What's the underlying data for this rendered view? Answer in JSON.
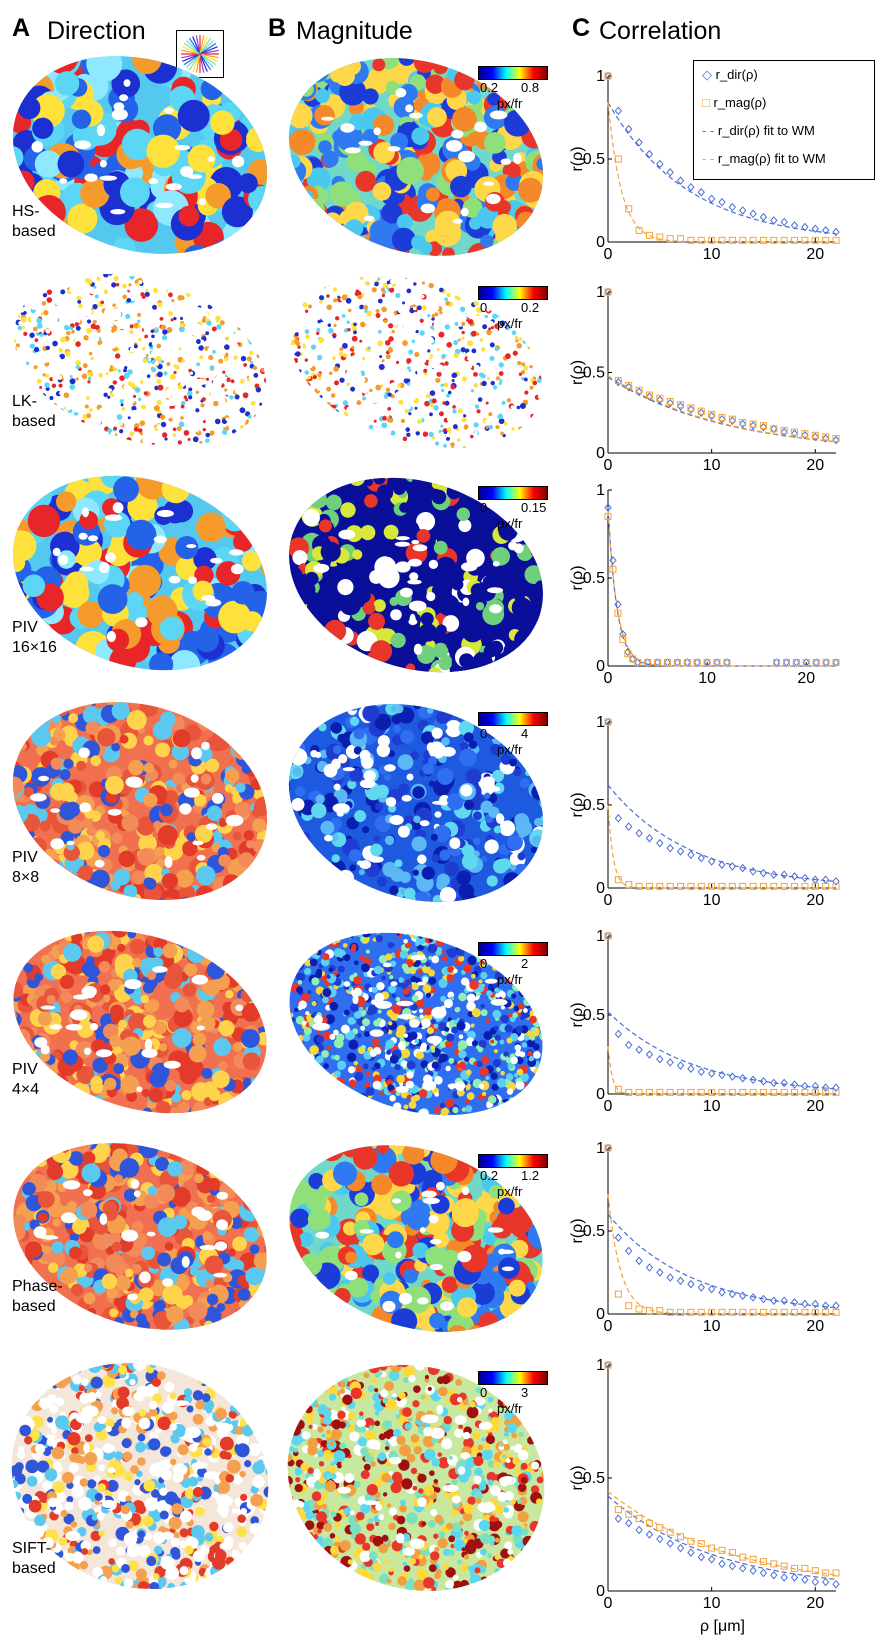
{
  "panels": {
    "a": {
      "letter": "A",
      "title": "Direction"
    },
    "b": {
      "letter": "B",
      "title": "Magnitude"
    },
    "c": {
      "letter": "C",
      "title": "Correlation"
    }
  },
  "colors": {
    "dir_series": "#4a6ed6",
    "mag_series": "#f2a43a",
    "jet": [
      "#00008f",
      "#0000ff",
      "#00ffff",
      "#ffff00",
      "#ff0000",
      "#800000"
    ]
  },
  "methods": [
    {
      "label_lines": [
        "HS-",
        "based"
      ],
      "cb_ticks": [
        "0.2",
        "0.8"
      ],
      "cb_unit": "px/fr",
      "dir_style": "jet-blobs",
      "mag_style": "jet-mid"
    },
    {
      "label_lines": [
        "LK-",
        "based"
      ],
      "cb_ticks": [
        "0",
        "0.2"
      ],
      "cb_unit": "px/fr",
      "dir_style": "sparse",
      "mag_style": "sparse"
    },
    {
      "label_lines": [
        "PIV",
        "16×16"
      ],
      "cb_ticks": [
        "0",
        "0.15"
      ],
      "cb_unit": "px/fr",
      "dir_style": "jet-blobs",
      "mag_style": "dark-blue"
    },
    {
      "label_lines": [
        "PIV",
        "8×8"
      ],
      "cb_ticks": [
        "0",
        "4"
      ],
      "cb_unit": "px/fr",
      "dir_style": "red-dominant",
      "mag_style": "blue"
    },
    {
      "label_lines": [
        "PIV",
        "4×4"
      ],
      "cb_ticks": [
        "0",
        "2"
      ],
      "cb_unit": "px/fr",
      "dir_style": "red-dominant",
      "mag_style": "blue-speckle"
    },
    {
      "label_lines": [
        "Phase-",
        "based"
      ],
      "cb_ticks": [
        "0.2",
        "1.2"
      ],
      "cb_unit": "px/fr",
      "dir_style": "red-dominant",
      "mag_style": "jet-mid"
    },
    {
      "label_lines": [
        "SIFT-",
        "based"
      ],
      "cb_ticks": [
        "0",
        "3"
      ],
      "cb_unit": "px/fr",
      "dir_style": "speckle-white",
      "mag_style": "warm-speckle"
    }
  ],
  "chart_data": [
    {
      "type": "scatter",
      "ylabel": "r(ρ)",
      "xlabel": "",
      "xlim": [
        0,
        22
      ],
      "ylim": [
        0,
        1
      ],
      "xticks": [
        0,
        10,
        20
      ],
      "yticks": [
        0,
        0.5,
        1
      ],
      "ytick_labels": [
        "0",
        "0.5",
        "1"
      ],
      "legend": {
        "placement": "top-right",
        "entries": [
          "r_dir(ρ)",
          "r_mag(ρ)",
          "r_dir(ρ) fit to WM",
          "r_mag(ρ) fit to WM"
        ]
      },
      "series": [
        {
          "series": "dir",
          "x": [
            0,
            1,
            2,
            3,
            4,
            5,
            6,
            7,
            8,
            9,
            10,
            11,
            12,
            13,
            14,
            15,
            16,
            17,
            18,
            19,
            20,
            21,
            22
          ],
          "y": [
            1,
            0.79,
            0.68,
            0.6,
            0.53,
            0.47,
            0.42,
            0.37,
            0.33,
            0.3,
            0.26,
            0.24,
            0.21,
            0.19,
            0.17,
            0.15,
            0.13,
            0.12,
            0.1,
            0.09,
            0.08,
            0.07,
            0.06
          ]
        },
        {
          "series": "mag",
          "x": [
            0,
            1,
            2,
            3,
            4,
            5,
            6,
            7,
            8,
            9,
            10,
            11,
            12,
            13,
            14,
            15,
            16,
            17,
            18,
            19,
            20,
            21,
            22
          ],
          "y": [
            1,
            0.5,
            0.2,
            0.07,
            0.04,
            0.03,
            0.02,
            0.02,
            0.01,
            0.01,
            0.01,
            0.01,
            0.01,
            0.01,
            0.01,
            0.01,
            0.01,
            0.01,
            0.01,
            0.01,
            0.01,
            0.01,
            0.01
          ]
        }
      ],
      "fits": [
        {
          "series": "dir",
          "a": 0.84,
          "tau": 7.8
        },
        {
          "series": "mag",
          "a": 0.84,
          "tau": 1.3
        }
      ]
    },
    {
      "type": "scatter",
      "ylabel": "r(ρ)",
      "xlabel": "",
      "xlim": [
        0,
        22
      ],
      "ylim": [
        0,
        1
      ],
      "xticks": [
        0,
        10,
        20
      ],
      "yticks": [
        0,
        0.5,
        1
      ],
      "ytick_labels": [
        "0",
        "0.5",
        "1"
      ],
      "series": [
        {
          "series": "dir",
          "x": [
            0,
            1,
            2,
            3,
            4,
            5,
            6,
            7,
            8,
            9,
            10,
            11,
            12,
            13,
            14,
            15,
            16,
            17,
            18,
            19,
            20,
            21,
            22
          ],
          "y": [
            1,
            0.44,
            0.41,
            0.38,
            0.35,
            0.33,
            0.31,
            0.29,
            0.27,
            0.25,
            0.23,
            0.21,
            0.2,
            0.18,
            0.17,
            0.16,
            0.15,
            0.13,
            0.12,
            0.11,
            0.1,
            0.09,
            0.08
          ]
        },
        {
          "series": "mag",
          "x": [
            0,
            1,
            2,
            3,
            4,
            5,
            6,
            7,
            8,
            9,
            10,
            11,
            12,
            13,
            14,
            15,
            16,
            17,
            18,
            19,
            20,
            21,
            22
          ],
          "y": [
            1,
            0.45,
            0.42,
            0.39,
            0.36,
            0.34,
            0.32,
            0.3,
            0.28,
            0.26,
            0.24,
            0.22,
            0.21,
            0.19,
            0.18,
            0.17,
            0.15,
            0.14,
            0.13,
            0.12,
            0.11,
            0.1,
            0.09
          ]
        }
      ],
      "fits": [
        {
          "series": "dir",
          "a": 0.47,
          "tau": 11.5
        },
        {
          "series": "mag",
          "a": 0.48,
          "tau": 11.5
        }
      ]
    },
    {
      "type": "scatter",
      "ylabel": "r(ρ)",
      "xlabel": "",
      "xlim": [
        0,
        23
      ],
      "ylim": [
        0,
        1
      ],
      "xticks": [
        0,
        10,
        20
      ],
      "yticks": [
        0,
        0.5,
        1
      ],
      "ytick_labels": [
        "0",
        "0.5",
        "1"
      ],
      "series": [
        {
          "series": "dir",
          "x": [
            0,
            0.5,
            1,
            1.5,
            2,
            2.5,
            3,
            4,
            5,
            6,
            7,
            8,
            9,
            10,
            11,
            12,
            17,
            18,
            19,
            20,
            21,
            22,
            23
          ],
          "y": [
            0.9,
            0.6,
            0.35,
            0.18,
            0.08,
            0.04,
            0.02,
            0.02,
            0.02,
            0.02,
            0.02,
            0.02,
            0.02,
            0.02,
            0.02,
            0.02,
            0.02,
            0.02,
            0.02,
            0.02,
            0.02,
            0.02,
            0.02
          ]
        },
        {
          "series": "mag",
          "x": [
            0,
            0.5,
            1,
            1.5,
            2,
            2.5,
            3,
            4,
            5,
            6,
            7,
            8,
            9,
            10,
            11,
            12,
            17,
            18,
            19,
            20,
            21,
            22,
            23
          ],
          "y": [
            0.85,
            0.55,
            0.3,
            0.15,
            0.07,
            0.04,
            0.02,
            0.02,
            0.02,
            0.02,
            0.02,
            0.02,
            0.02,
            0.02,
            0.02,
            0.02,
            0.02,
            0.02,
            0.02,
            0.02,
            0.02,
            0.02,
            0.02
          ]
        }
      ],
      "fits": [
        {
          "series": "dir",
          "a": 0.9,
          "tau": 0.9
        },
        {
          "series": "mag",
          "a": 0.88,
          "tau": 0.95
        }
      ]
    },
    {
      "type": "scatter",
      "ylabel": "r(ρ)",
      "xlabel": "",
      "xlim": [
        0,
        22
      ],
      "ylim": [
        0,
        1
      ],
      "xticks": [
        0,
        10,
        20
      ],
      "yticks": [
        0,
        0.5,
        1
      ],
      "ytick_labels": [
        "0",
        "0.5",
        "1"
      ],
      "series": [
        {
          "series": "dir",
          "x": [
            0,
            1,
            2,
            3,
            4,
            5,
            6,
            7,
            8,
            9,
            10,
            11,
            12,
            13,
            14,
            15,
            16,
            17,
            18,
            19,
            20,
            21,
            22
          ],
          "y": [
            1,
            0.42,
            0.37,
            0.33,
            0.3,
            0.27,
            0.24,
            0.22,
            0.2,
            0.18,
            0.16,
            0.14,
            0.13,
            0.12,
            0.1,
            0.09,
            0.08,
            0.08,
            0.07,
            0.06,
            0.05,
            0.05,
            0.04
          ]
        },
        {
          "series": "mag",
          "x": [
            0,
            1,
            2,
            3,
            4,
            5,
            6,
            7,
            8,
            9,
            10,
            11,
            12,
            13,
            14,
            15,
            16,
            17,
            18,
            19,
            20,
            21,
            22
          ],
          "y": [
            1,
            0.05,
            0.02,
            0.01,
            0.01,
            0.01,
            0.01,
            0.01,
            0.01,
            0.01,
            0.01,
            0.01,
            0.01,
            0.01,
            0.01,
            0.01,
            0.01,
            0.01,
            0.01,
            0.01,
            0.01,
            0.01,
            0.01
          ]
        }
      ],
      "fits": [
        {
          "series": "dir",
          "a": 0.62,
          "tau": 8
        },
        {
          "series": "mag",
          "a": 0.5,
          "tau": 0.5
        }
      ]
    },
    {
      "type": "scatter",
      "ylabel": "r(ρ)",
      "xlabel": "",
      "xlim": [
        0,
        22
      ],
      "ylim": [
        0,
        1
      ],
      "xticks": [
        0,
        10,
        20
      ],
      "yticks": [
        0,
        0.5,
        1
      ],
      "ytick_labels": [
        "0",
        "0.5",
        "1"
      ],
      "series": [
        {
          "series": "dir",
          "x": [
            0,
            1,
            2,
            3,
            4,
            5,
            6,
            7,
            8,
            9,
            10,
            11,
            12,
            13,
            14,
            15,
            16,
            17,
            18,
            19,
            20,
            21,
            22
          ],
          "y": [
            1,
            0.38,
            0.31,
            0.28,
            0.25,
            0.22,
            0.2,
            0.18,
            0.16,
            0.14,
            0.13,
            0.12,
            0.11,
            0.1,
            0.09,
            0.08,
            0.07,
            0.07,
            0.06,
            0.05,
            0.05,
            0.04,
            0.04
          ]
        },
        {
          "series": "mag",
          "x": [
            0,
            1,
            2,
            3,
            4,
            5,
            6,
            7,
            8,
            9,
            10,
            11,
            12,
            13,
            14,
            15,
            16,
            17,
            18,
            19,
            20,
            21,
            22
          ],
          "y": [
            1,
            0.03,
            0.01,
            0.01,
            0.01,
            0.01,
            0.01,
            0.01,
            0.01,
            0.01,
            0.01,
            0.01,
            0.01,
            0.01,
            0.01,
            0.01,
            0.01,
            0.01,
            0.01,
            0.01,
            0.01,
            0.01,
            0.01
          ]
        }
      ],
      "fits": [
        {
          "series": "dir",
          "a": 0.52,
          "tau": 8
        },
        {
          "series": "mag",
          "a": 0.3,
          "tau": 0.4
        }
      ]
    },
    {
      "type": "scatter",
      "ylabel": "r(ρ)",
      "xlabel": "",
      "xlim": [
        0,
        22
      ],
      "ylim": [
        0,
        1
      ],
      "xticks": [
        0,
        10,
        20
      ],
      "yticks": [
        0,
        0.5,
        1
      ],
      "ytick_labels": [
        "0",
        "0.5",
        "1"
      ],
      "series": [
        {
          "series": "dir",
          "x": [
            0,
            1,
            2,
            3,
            4,
            5,
            6,
            7,
            8,
            9,
            10,
            11,
            12,
            13,
            14,
            15,
            16,
            17,
            18,
            19,
            20,
            21,
            22
          ],
          "y": [
            1,
            0.46,
            0.38,
            0.32,
            0.28,
            0.25,
            0.22,
            0.2,
            0.18,
            0.16,
            0.15,
            0.13,
            0.12,
            0.11,
            0.1,
            0.09,
            0.08,
            0.08,
            0.07,
            0.06,
            0.06,
            0.05,
            0.05
          ]
        },
        {
          "series": "mag",
          "x": [
            0,
            1,
            2,
            3,
            4,
            5,
            6,
            7,
            8,
            9,
            10,
            11,
            12,
            13,
            14,
            15,
            16,
            17,
            18,
            19,
            20,
            21,
            22
          ],
          "y": [
            1,
            0.12,
            0.05,
            0.03,
            0.02,
            0.02,
            0.01,
            0.01,
            0.01,
            0.01,
            0.01,
            0.01,
            0.01,
            0.01,
            0.01,
            0.01,
            0.01,
            0.01,
            0.01,
            0.01,
            0.01,
            0.01,
            0.01
          ]
        }
      ],
      "fits": [
        {
          "series": "dir",
          "a": 0.6,
          "tau": 8
        },
        {
          "series": "mag",
          "a": 0.72,
          "tau": 1.2
        }
      ]
    },
    {
      "type": "scatter",
      "ylabel": "r(ρ)",
      "xlabel": "ρ [μm]",
      "xlim": [
        0,
        22
      ],
      "ylim": [
        0,
        1
      ],
      "xticks": [
        0,
        10,
        20
      ],
      "yticks": [
        0,
        0.5,
        1
      ],
      "ytick_labels": [
        "0",
        "0.5",
        "1"
      ],
      "series": [
        {
          "series": "dir",
          "x": [
            0,
            1,
            2,
            3,
            4,
            5,
            6,
            7,
            8,
            9,
            10,
            11,
            12,
            13,
            14,
            15,
            16,
            17,
            18,
            19,
            20,
            21,
            22
          ],
          "y": [
            1,
            0.32,
            0.3,
            0.27,
            0.25,
            0.23,
            0.21,
            0.19,
            0.17,
            0.15,
            0.14,
            0.12,
            0.11,
            0.1,
            0.09,
            0.08,
            0.07,
            0.06,
            0.06,
            0.05,
            0.04,
            0.04,
            0.03
          ]
        },
        {
          "series": "mag",
          "x": [
            0,
            1,
            2,
            3,
            4,
            5,
            6,
            7,
            8,
            9,
            10,
            11,
            12,
            13,
            14,
            15,
            16,
            17,
            18,
            19,
            20,
            21,
            22
          ],
          "y": [
            1,
            0.36,
            0.34,
            0.32,
            0.3,
            0.28,
            0.26,
            0.24,
            0.22,
            0.21,
            0.19,
            0.18,
            0.17,
            0.15,
            0.14,
            0.13,
            0.12,
            0.11,
            0.1,
            0.1,
            0.09,
            0.08,
            0.08
          ]
        }
      ],
      "fits": [
        {
          "series": "dir",
          "a": 0.42,
          "tau": 10.5
        },
        {
          "series": "mag",
          "a": 0.44,
          "tau": 12
        }
      ]
    }
  ]
}
